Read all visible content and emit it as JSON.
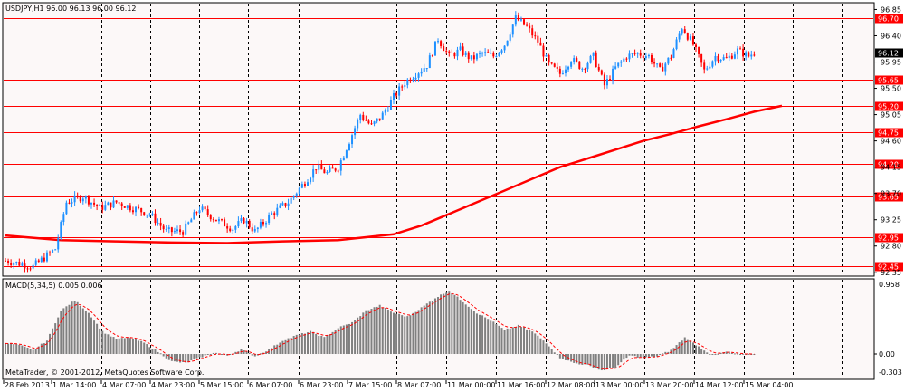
{
  "header": {
    "symbol_info": "USDJPY,H1  96.00 96.13 96.00 96.12"
  },
  "indicator": {
    "title": "MACD(5,34,5) 0.005 0.006",
    "axis_top": "0.958",
    "axis_zero": "0.00",
    "axis_bottom": "-0.303"
  },
  "copyright": "MetaTrader, © 2001-2012, MetaQuotes Software Corp.",
  "colors": {
    "bull": "#1e90ff",
    "bear": "#ff0000",
    "ma": "#ff0000",
    "level_line": "#ff0000",
    "histogram": "#808080",
    "signal": "#ff0000",
    "grid": "#000000",
    "panel_bg": "#fcf8f8"
  },
  "chart_data": [
    {
      "type": "candlestick",
      "y_axis_ticks": [
        "96.85",
        "96.40",
        "95.95",
        "95.50",
        "95.05",
        "94.60",
        "94.15",
        "93.70",
        "93.25",
        "92.80",
        "92.35"
      ],
      "ylim": [
        92.3,
        96.95
      ],
      "current_price": "96.12",
      "levels": [
        {
          "value": 96.7,
          "label": "96.70"
        },
        {
          "value": 95.65,
          "label": "95.65"
        },
        {
          "value": 95.2,
          "label": "95.20"
        },
        {
          "value": 94.75,
          "label": "94.75"
        },
        {
          "value": 94.2,
          "label": "94.20"
        },
        {
          "value": 93.65,
          "label": "93.65"
        },
        {
          "value": 92.95,
          "label": "92.95"
        },
        {
          "value": 92.45,
          "label": "92.45"
        }
      ],
      "x_tick_labels": [
        "28 Feb 2013",
        "1 Mar 14:00",
        "4 Mar 07:00",
        "4 Mar 23:00",
        "5 Mar 15:00",
        "6 Mar 07:00",
        "6 Mar 23:00",
        "7 Mar 15:00",
        "8 Mar 07:00",
        "11 Mar 00:00",
        "11 Mar 16:00",
        "12 Mar 08:00",
        "13 Mar 00:00",
        "13 Mar 20:00",
        "14 Mar 12:00",
        "15 Mar 04:00"
      ],
      "close_path": [
        [
          0,
          92.55
        ],
        [
          10,
          92.45
        ],
        [
          18,
          92.75
        ],
        [
          22,
          93.55
        ],
        [
          28,
          93.65
        ],
        [
          34,
          93.45
        ],
        [
          40,
          93.55
        ],
        [
          46,
          93.45
        ],
        [
          52,
          93.35
        ],
        [
          58,
          93.05
        ],
        [
          64,
          93.05
        ],
        [
          70,
          93.45
        ],
        [
          76,
          93.25
        ],
        [
          82,
          93.1
        ],
        [
          86,
          93.25
        ],
        [
          90,
          93.05
        ],
        [
          96,
          93.35
        ],
        [
          102,
          93.55
        ],
        [
          108,
          93.9
        ],
        [
          112,
          94.15
        ],
        [
          116,
          94.05
        ],
        [
          120,
          94.15
        ],
        [
          124,
          94.6
        ],
        [
          128,
          95.05
        ],
        [
          132,
          94.85
        ],
        [
          136,
          95.05
        ],
        [
          140,
          95.35
        ],
        [
          144,
          95.6
        ],
        [
          148,
          95.75
        ],
        [
          152,
          95.9
        ],
        [
          156,
          96.35
        ],
        [
          160,
          96.05
        ],
        [
          164,
          96.15
        ],
        [
          168,
          96.0
        ],
        [
          172,
          96.1
        ],
        [
          176,
          96.05
        ],
        [
          180,
          96.25
        ],
        [
          184,
          96.7
        ],
        [
          188,
          96.55
        ],
        [
          192,
          96.3
        ],
        [
          196,
          95.9
        ],
        [
          200,
          95.75
        ],
        [
          204,
          96.0
        ],
        [
          208,
          95.85
        ],
        [
          212,
          96.05
        ],
        [
          216,
          95.55
        ],
        [
          220,
          95.85
        ],
        [
          224,
          96.05
        ],
        [
          228,
          96.1
        ],
        [
          232,
          96.05
        ],
        [
          236,
          95.8
        ],
        [
          240,
          96.05
        ],
        [
          244,
          96.55
        ],
        [
          248,
          96.25
        ],
        [
          252,
          95.8
        ],
        [
          256,
          96.05
        ],
        [
          260,
          96.0
        ],
        [
          264,
          96.15
        ],
        [
          268,
          96.05
        ],
        [
          270,
          96.12
        ]
      ],
      "ma_points": [
        [
          0,
          92.98
        ],
        [
          20,
          92.9
        ],
        [
          40,
          92.88
        ],
        [
          60,
          92.86
        ],
        [
          80,
          92.85
        ],
        [
          100,
          92.88
        ],
        [
          120,
          92.9
        ],
        [
          140,
          93.0
        ],
        [
          150,
          93.15
        ],
        [
          160,
          93.35
        ],
        [
          170,
          93.55
        ],
        [
          180,
          93.75
        ],
        [
          190,
          93.95
        ],
        [
          200,
          94.15
        ],
        [
          210,
          94.3
        ],
        [
          220,
          94.45
        ],
        [
          230,
          94.6
        ],
        [
          240,
          94.72
        ],
        [
          250,
          94.85
        ],
        [
          260,
          94.97
        ],
        [
          270,
          95.1
        ],
        [
          280,
          95.2
        ]
      ]
    },
    {
      "type": "bar",
      "name": "MACD",
      "ylim": [
        -0.303,
        0.958
      ],
      "hist_path": [
        [
          0,
          0.15
        ],
        [
          5,
          0.12
        ],
        [
          10,
          0.05
        ],
        [
          15,
          0.18
        ],
        [
          20,
          0.58
        ],
        [
          25,
          0.72
        ],
        [
          30,
          0.55
        ],
        [
          35,
          0.3
        ],
        [
          40,
          0.2
        ],
        [
          45,
          0.22
        ],
        [
          50,
          0.15
        ],
        [
          55,
          0.03
        ],
        [
          60,
          -0.1
        ],
        [
          65,
          -0.12
        ],
        [
          70,
          -0.05
        ],
        [
          75,
          0.02
        ],
        [
          80,
          -0.02
        ],
        [
          85,
          0.06
        ],
        [
          90,
          -0.03
        ],
        [
          95,
          0.06
        ],
        [
          100,
          0.18
        ],
        [
          105,
          0.25
        ],
        [
          110,
          0.3
        ],
        [
          115,
          0.22
        ],
        [
          120,
          0.35
        ],
        [
          125,
          0.42
        ],
        [
          130,
          0.58
        ],
        [
          135,
          0.65
        ],
        [
          140,
          0.55
        ],
        [
          145,
          0.5
        ],
        [
          150,
          0.62
        ],
        [
          155,
          0.75
        ],
        [
          160,
          0.85
        ],
        [
          165,
          0.7
        ],
        [
          170,
          0.55
        ],
        [
          175,
          0.45
        ],
        [
          180,
          0.32
        ],
        [
          185,
          0.38
        ],
        [
          190,
          0.3
        ],
        [
          195,
          0.15
        ],
        [
          200,
          -0.05
        ],
        [
          205,
          -0.12
        ],
        [
          210,
          -0.15
        ],
        [
          215,
          -0.22
        ],
        [
          220,
          -0.18
        ],
        [
          225,
          -0.02
        ],
        [
          230,
          -0.05
        ],
        [
          235,
          -0.03
        ],
        [
          240,
          0.05
        ],
        [
          245,
          0.22
        ],
        [
          250,
          0.1
        ],
        [
          255,
          -0.02
        ],
        [
          260,
          0.03
        ],
        [
          265,
          -0.01
        ],
        [
          270,
          0.005
        ]
      ]
    }
  ]
}
